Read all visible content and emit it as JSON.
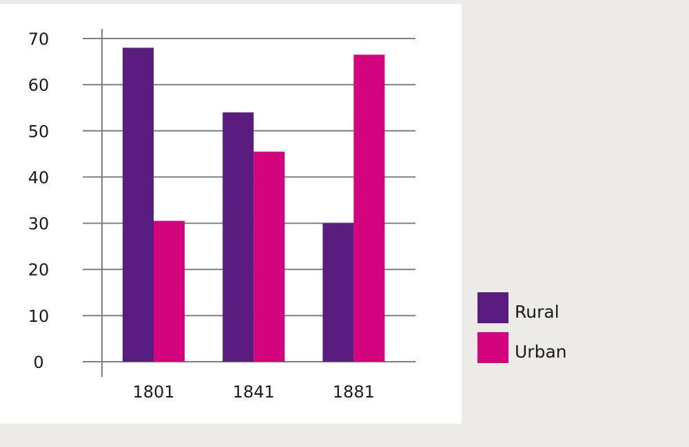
{
  "chart_data": {
    "type": "bar",
    "categories": [
      "1801",
      "1841",
      "1881"
    ],
    "series": [
      {
        "name": "Rural",
        "values": [
          68,
          54,
          30
        ],
        "color": "#5b1c7f"
      },
      {
        "name": "Urban",
        "values": [
          30.5,
          45.5,
          66.5
        ],
        "color": "#d4037e"
      }
    ],
    "ylim": [
      0,
      70
    ],
    "yticks": [
      "0",
      "10",
      "20",
      "30",
      "40",
      "50",
      "60",
      "70"
    ],
    "grid": true,
    "legend_position": "right",
    "title": "",
    "xlabel": "",
    "ylabel": ""
  }
}
